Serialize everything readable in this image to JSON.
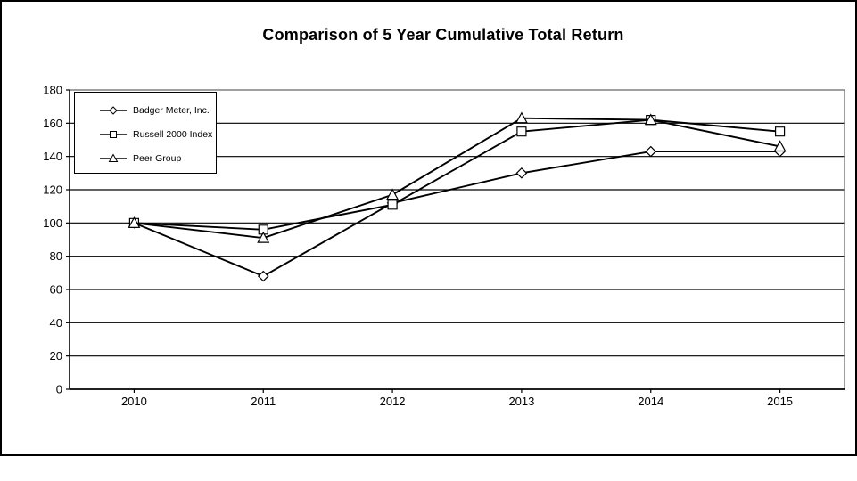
{
  "title": "Comparison of 5 Year Cumulative Total Return",
  "chart_data": {
    "type": "line",
    "title": "Comparison of 5 Year Cumulative Total Return",
    "categories": [
      "2010",
      "2011",
      "2012",
      "2013",
      "2014",
      "2015"
    ],
    "series": [
      {
        "name": "Badger Meter, Inc.",
        "marker": "diamond",
        "values": [
          100,
          68,
          112,
          130,
          143,
          143
        ]
      },
      {
        "name": "Russell 2000 Index",
        "marker": "square",
        "values": [
          100,
          96,
          111,
          155,
          162,
          155
        ]
      },
      {
        "name": "Peer Group",
        "marker": "triangle",
        "values": [
          100,
          91,
          117,
          163,
          162,
          146
        ]
      }
    ],
    "xlabel": "",
    "ylabel": "",
    "ylim": [
      0,
      180
    ],
    "y_ticks": [
      0,
      20,
      40,
      60,
      80,
      100,
      120,
      140,
      160,
      180
    ],
    "grid": true,
    "legend_position": "top-left",
    "line_color": "#000000",
    "marker_fill": "#ffffff",
    "plot_frame_color": "#808080",
    "axis_color": "#000000",
    "outer_border_color": "#000000",
    "background": "#ffffff"
  }
}
